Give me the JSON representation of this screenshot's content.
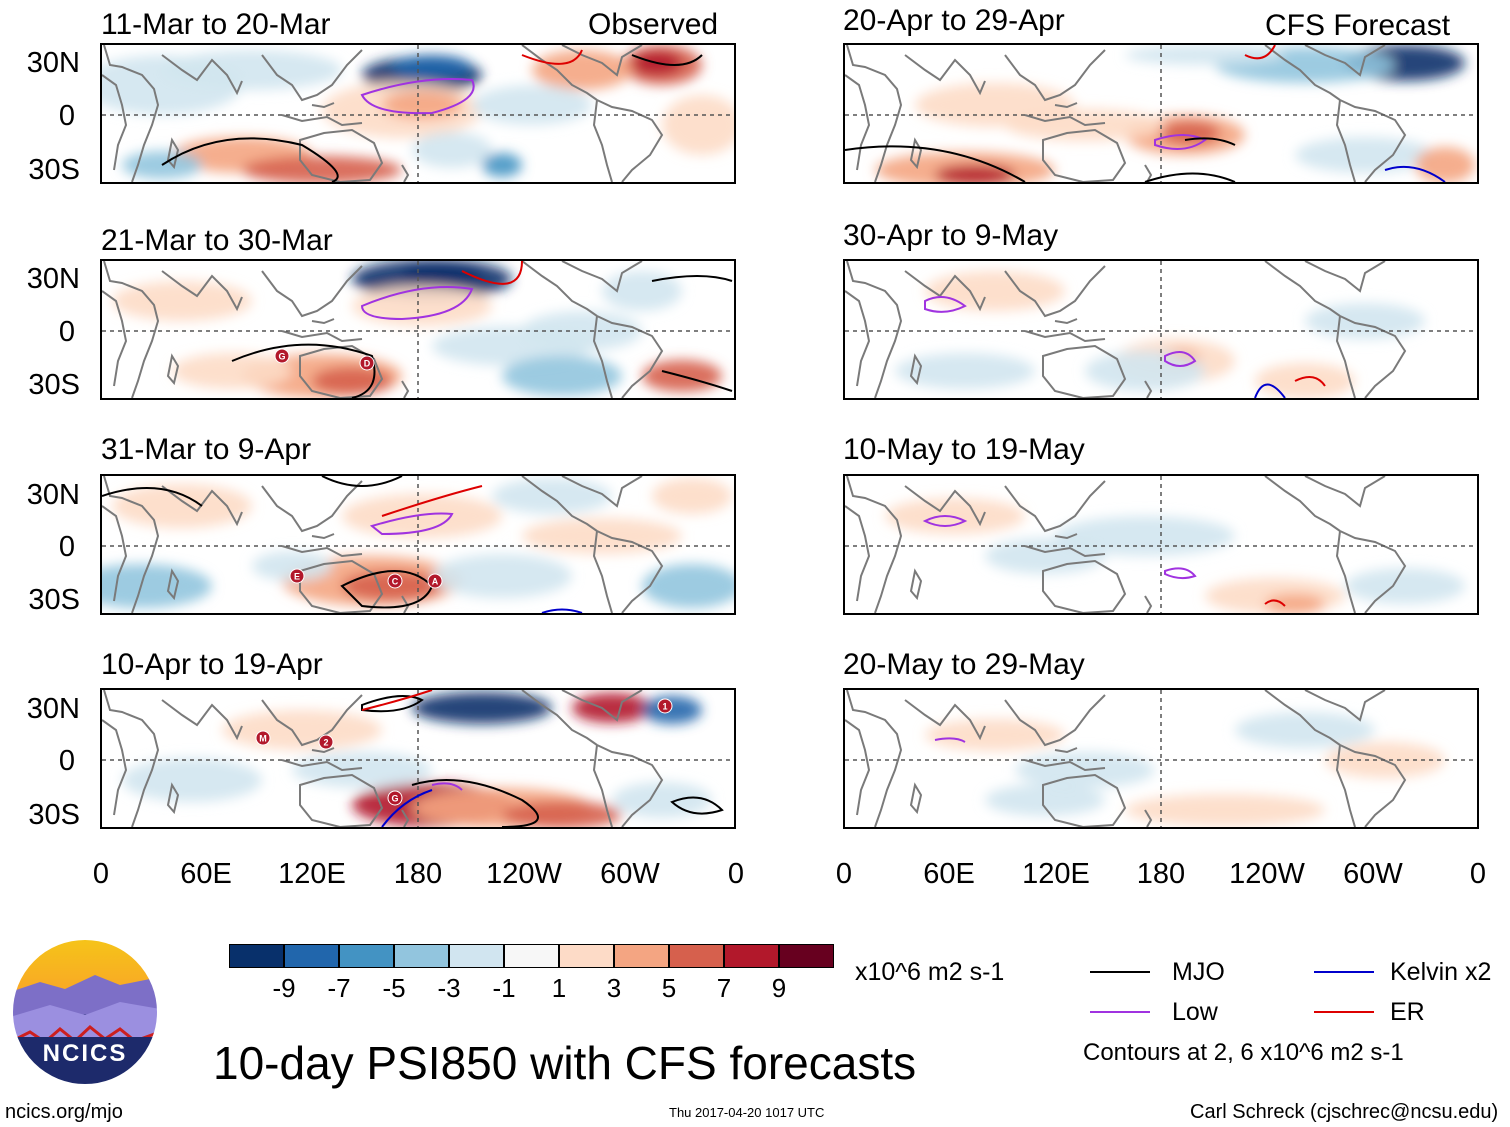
{
  "panels_left": [
    {
      "title": "11-Mar to 20-Mar",
      "tag": "Observed"
    },
    {
      "title": "21-Mar to 30-Mar",
      "tag": ""
    },
    {
      "title": "31-Mar to 9-Apr",
      "tag": ""
    },
    {
      "title": "10-Apr to 19-Apr",
      "tag": ""
    }
  ],
  "panels_right": [
    {
      "title": "20-Apr to 29-Apr",
      "tag": "CFS Forecast"
    },
    {
      "title": "30-Apr to 9-May",
      "tag": ""
    },
    {
      "title": "10-May to 19-May",
      "tag": ""
    },
    {
      "title": "20-May to 29-May",
      "tag": ""
    }
  ],
  "lat_labels": [
    "30N",
    "0",
    "30S"
  ],
  "lon_labels": [
    "0",
    "60E",
    "120E",
    "180",
    "120W",
    "60W",
    "0"
  ],
  "storm_markers": [
    {
      "panel": "left-1",
      "labels": [
        "G",
        "D"
      ]
    },
    {
      "panel": "left-2",
      "labels": [
        "E",
        "C",
        "A"
      ]
    },
    {
      "panel": "left-3",
      "labels": [
        "M",
        "2",
        "G",
        "1"
      ]
    }
  ],
  "colorbar": {
    "colors": [
      "#08306b",
      "#2166ac",
      "#4393c3",
      "#92c5de",
      "#d1e5f0",
      "#f7f7f7",
      "#fddbc7",
      "#f4a582",
      "#d6604d",
      "#b2182b",
      "#67001f"
    ],
    "tick_labels": [
      "-9",
      "-7",
      "-5",
      "-3",
      "-1",
      "1",
      "3",
      "5",
      "7",
      "9"
    ],
    "units": "x10^6 m2 s-1"
  },
  "legend": {
    "items": [
      {
        "label": "MJO",
        "color": "#000000"
      },
      {
        "label": "Kelvin x2",
        "color": "#0000cc"
      },
      {
        "label": "Low",
        "color": "#a033e0"
      },
      {
        "label": "ER",
        "color": "#dd0000"
      }
    ],
    "contours_note": "Contours at 2, 6 x10^6 m2 s-1"
  },
  "logo_text": "NCICS",
  "main_title": "10-day PSI850 with CFS forecasts",
  "footer": {
    "url": "ncics.org/mjo",
    "timestamp": "Thu 2017-04-20 1017 UTC",
    "author": "Carl Schreck (cjschrec@ncsu.edu)"
  }
}
